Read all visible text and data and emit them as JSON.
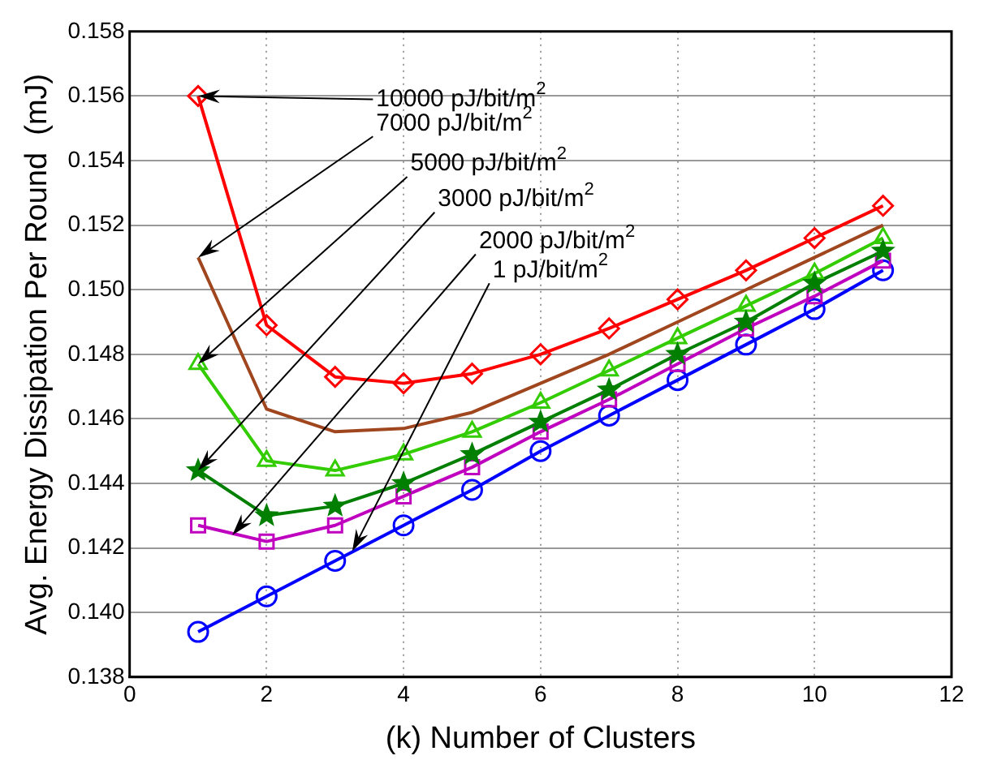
{
  "chart_data": {
    "type": "line",
    "xlabel": "(k) Number of Clusters",
    "ylabel": "Avg. Energy Dissipation Per Round  (mJ)",
    "x": [
      1,
      2,
      3,
      4,
      5,
      6,
      7,
      8,
      9,
      10,
      11
    ],
    "series": [
      {
        "color": "#ff0000",
        "marker": "diamond",
        "values": [
          0.156,
          0.1489,
          0.1473,
          0.1471,
          0.1474,
          0.148,
          0.1488,
          0.1497,
          0.1506,
          0.1516,
          0.1526
        ]
      },
      {
        "color": "#a0461e",
        "marker": "none",
        "values": [
          0.151,
          0.1463,
          0.1456,
          0.1457,
          0.1462,
          0.1471,
          0.148,
          0.149,
          0.15,
          0.151,
          0.152
        ]
      },
      {
        "color": "#33cc00",
        "marker": "triangle",
        "values": [
          0.1477,
          0.1447,
          0.1444,
          0.1449,
          0.1456,
          0.1465,
          0.1475,
          0.1485,
          0.1495,
          0.1505,
          0.1516
        ]
      },
      {
        "color": "#007f00",
        "marker": "star",
        "values": [
          0.1444,
          0.143,
          0.1433,
          0.144,
          0.1449,
          0.1459,
          0.1469,
          0.148,
          0.149,
          0.1502,
          0.1512
        ]
      },
      {
        "color": "#bf00bf",
        "marker": "square",
        "values": [
          0.1427,
          0.1422,
          0.1427,
          0.1436,
          0.1445,
          0.1456,
          0.1466,
          0.1477,
          0.1488,
          0.1498,
          0.1509
        ]
      },
      {
        "color": "#0000ff",
        "marker": "circle",
        "values": [
          0.1394,
          0.1405,
          0.1416,
          0.1427,
          0.1438,
          0.145,
          0.1461,
          0.1472,
          0.1483,
          0.1494,
          0.1506
        ]
      }
    ],
    "xlim": [
      0,
      12
    ],
    "xticks": [
      0,
      2,
      4,
      6,
      8,
      10,
      12
    ],
    "ylim": [
      0.138,
      0.158
    ],
    "yticks": [
      0.138,
      {
        "value": 0.14,
        "label": "0.140"
      },
      0.142,
      0.144,
      0.146,
      0.148,
      {
        "value": 0.15,
        "label": "0.150"
      },
      0.152,
      0.154,
      0.156,
      0.158
    ],
    "grid": true,
    "legend": false,
    "line_style": "solid",
    "annotations": [
      {
        "text": "10000 pJ/bit/m$^{2}$",
        "x": 1,
        "y": 0.156
      },
      {
        "text": "7000 pJ/bit/m$^{2}$",
        "x": 1,
        "y": 0.151
      },
      {
        "text": "5000 pJ/bit/m$^{2}$",
        "x": 1,
        "y": 0.1477
      },
      {
        "text": "3000 pJ/bit/m$^{2}$",
        "x": 1,
        "y": 0.1444
      },
      {
        "text": "2000 pJ/bit/m$^{2}$",
        "x": 1.5,
        "y": 0.1424
      },
      {
        "text": "1 pJ/bit/m$^{2}$",
        "x": 3.25,
        "y": 0.1419
      }
    ]
  }
}
